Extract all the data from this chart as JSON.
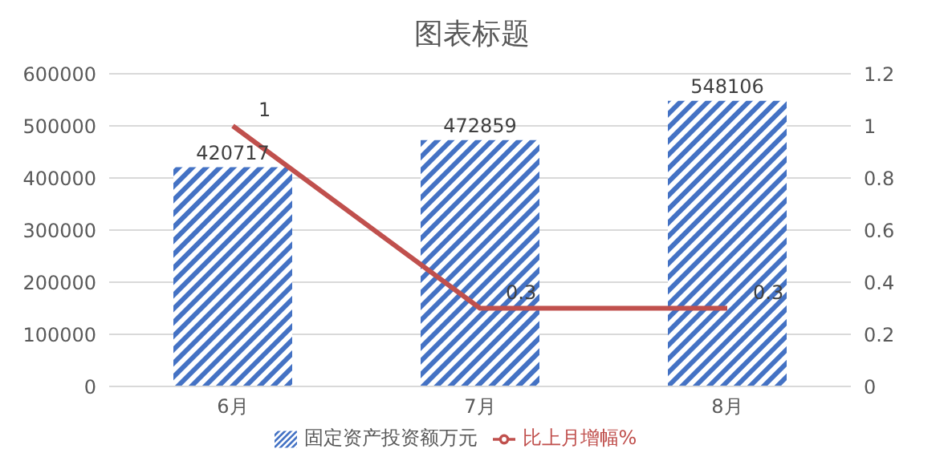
{
  "chart_data": {
    "type": "bar",
    "title": "图表标题",
    "categories": [
      "6月",
      "7月",
      "8月"
    ],
    "series": [
      {
        "name": "固定资产投资额万元",
        "color": "#4472c4",
        "values": [
          420717,
          472859,
          548106
        ]
      },
      {
        "name": "比上月增幅%",
        "type": "line",
        "axis": "y2",
        "color": "#c0504d",
        "values": [
          1,
          0.3,
          0.3
        ]
      }
    ],
    "ylim": [
      0,
      600000
    ],
    "yticks": [
      0,
      100000,
      200000,
      300000,
      400000,
      500000,
      600000
    ],
    "y2lim": [
      0,
      1.2
    ],
    "y2ticks": [
      0,
      0.2,
      0.4,
      0.6,
      0.8,
      1,
      1.2
    ],
    "grid": "y",
    "legend": "bottom",
    "data_labels": true,
    "marker": "none",
    "line_style": "solid"
  }
}
